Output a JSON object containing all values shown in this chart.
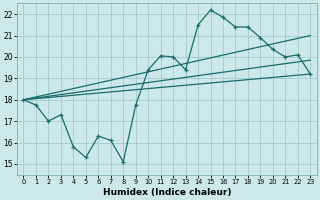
{
  "bg_color": "#cce8e8",
  "grid_color": "#aacfcf",
  "line_color": "#1a6b6b",
  "xlabel": "Humidex (Indice chaleur)",
  "xlim": [
    -0.5,
    23.5
  ],
  "ylim": [
    14.5,
    22.5
  ],
  "yticks": [
    15,
    16,
    17,
    18,
    19,
    20,
    21,
    22
  ],
  "xticks": [
    0,
    1,
    2,
    3,
    4,
    5,
    6,
    7,
    8,
    9,
    10,
    11,
    12,
    13,
    14,
    15,
    16,
    17,
    18,
    19,
    20,
    21,
    22,
    23
  ],
  "line1_x": [
    0,
    1,
    2,
    3,
    4,
    5,
    6,
    7,
    8,
    9,
    10,
    11,
    12,
    13,
    14,
    15,
    16,
    17,
    18,
    19,
    20,
    21,
    22,
    23
  ],
  "line1_y": [
    18.0,
    17.75,
    17.0,
    17.3,
    15.8,
    15.3,
    16.3,
    16.1,
    15.1,
    17.75,
    19.4,
    20.05,
    20.0,
    19.4,
    21.5,
    22.2,
    21.85,
    21.4,
    21.4,
    20.9,
    20.35,
    20.0,
    20.1,
    19.2
  ],
  "line2_x": [
    0,
    23
  ],
  "line2_y": [
    18.0,
    19.2
  ],
  "line3_x": [
    0,
    23
  ],
  "line3_y": [
    18.0,
    19.85
  ],
  "line4_x": [
    0,
    23
  ],
  "line4_y": [
    18.0,
    21.0
  ]
}
